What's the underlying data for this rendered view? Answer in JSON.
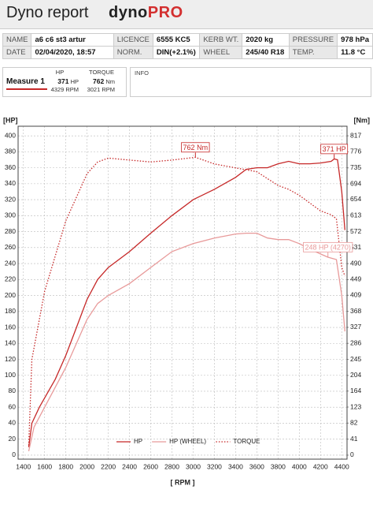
{
  "header": {
    "title": "Dyno report",
    "logo": [
      "dyno",
      "PRO"
    ]
  },
  "info_table": {
    "rows": [
      [
        "NAME",
        "a6 c6 st3 artur",
        "LICENCE",
        "6555 KC5",
        "KERB WT.",
        "2020 kg",
        "PRESSURE",
        "978 hPa"
      ],
      [
        "DATE",
        "02/04/2020, 18:57",
        "NORM.",
        "DIN(+2.1%)",
        "WHEEL",
        "245/40 R18",
        "TEMP.",
        "11.8 °C"
      ]
    ]
  },
  "measure": {
    "name": "Measure 1",
    "hp_header": "HP",
    "torque_header": "TORQUE",
    "hp": "371",
    "hp_unit": "HP",
    "hp_rpm": "4329 RPM",
    "torque": "762",
    "torque_unit": "Nm",
    "torque_rpm": "3021 RPM"
  },
  "info_label": "INFO",
  "chart_data": {
    "type": "line",
    "ylabel": "[HP]",
    "y2label": "[Nm]",
    "xlabel": "[ RPM ]",
    "xlim": [
      1350,
      4450
    ],
    "xticks": [
      1400,
      1600,
      1800,
      2000,
      2200,
      2400,
      2600,
      2800,
      3000,
      3200,
      3400,
      3600,
      3800,
      4000,
      4200,
      4400
    ],
    "ylim": [
      -5,
      412
    ],
    "yticks": [
      0,
      20,
      40,
      60,
      80,
      100,
      120,
      140,
      160,
      180,
      200,
      220,
      240,
      260,
      280,
      300,
      320,
      340,
      360,
      380,
      400
    ],
    "y2lim": [
      -10.2,
      841.5
    ],
    "y2ticks": [
      0,
      41,
      82,
      123,
      164,
      204,
      245,
      286,
      327,
      368,
      409,
      449,
      490,
      531,
      572,
      613,
      654,
      694,
      735,
      776,
      817
    ],
    "grid": true,
    "legend": "bottom",
    "series": [
      {
        "name": "HP",
        "color": "#c62828",
        "style": "solid",
        "x": [
          1450,
          1480,
          1550,
          1700,
          1800,
          1900,
          2000,
          2100,
          2200,
          2400,
          2600,
          2800,
          3000,
          3200,
          3400,
          3500,
          3600,
          3700,
          3800,
          3900,
          4000,
          4100,
          4200,
          4300,
          4329,
          4360,
          4400,
          4430
        ],
        "values": [
          10,
          40,
          60,
          95,
          125,
          160,
          195,
          220,
          235,
          255,
          278,
          300,
          320,
          333,
          348,
          358,
          360,
          360,
          365,
          368,
          365,
          365,
          366,
          368,
          371,
          370,
          330,
          282
        ]
      },
      {
        "name": "HP (WHEEL)",
        "color": "#e89a9a",
        "style": "solid",
        "x": [
          1450,
          1500,
          1600,
          1800,
          2000,
          2100,
          2200,
          2400,
          2600,
          2800,
          3000,
          3200,
          3400,
          3500,
          3600,
          3700,
          3800,
          3900,
          4000,
          4100,
          4200,
          4270,
          4350,
          4400,
          4430
        ],
        "values": [
          5,
          35,
          60,
          110,
          170,
          190,
          200,
          215,
          235,
          255,
          265,
          272,
          277,
          278,
          278,
          272,
          270,
          270,
          265,
          258,
          252,
          248,
          245,
          200,
          155
        ]
      },
      {
        "name": "TORQUE",
        "color": "#c62828",
        "style": "dotted",
        "axis": "y2",
        "x": [
          1450,
          1480,
          1600,
          1800,
          2000,
          2100,
          2200,
          2400,
          2600,
          2800,
          3021,
          3200,
          3400,
          3600,
          3800,
          3900,
          4000,
          4100,
          4200,
          4300,
          4350,
          4400,
          4430
        ],
        "values": [
          25,
          245,
          419,
          600,
          720,
          750,
          760,
          755,
          750,
          755,
          762,
          745,
          735,
          725,
          690,
          680,
          665,
          645,
          625,
          615,
          605,
          480,
          458
        ]
      }
    ],
    "annotations": [
      {
        "text": "762 Nm",
        "x": 3021,
        "y": 762,
        "axis": "y2",
        "color": "#c62828"
      },
      {
        "text": "371 HP",
        "x": 4329,
        "y": 371,
        "color": "#c62828"
      },
      {
        "text": "248 HP (4270)",
        "x": 4270,
        "y": 248,
        "color": "#e89a9a"
      }
    ]
  }
}
